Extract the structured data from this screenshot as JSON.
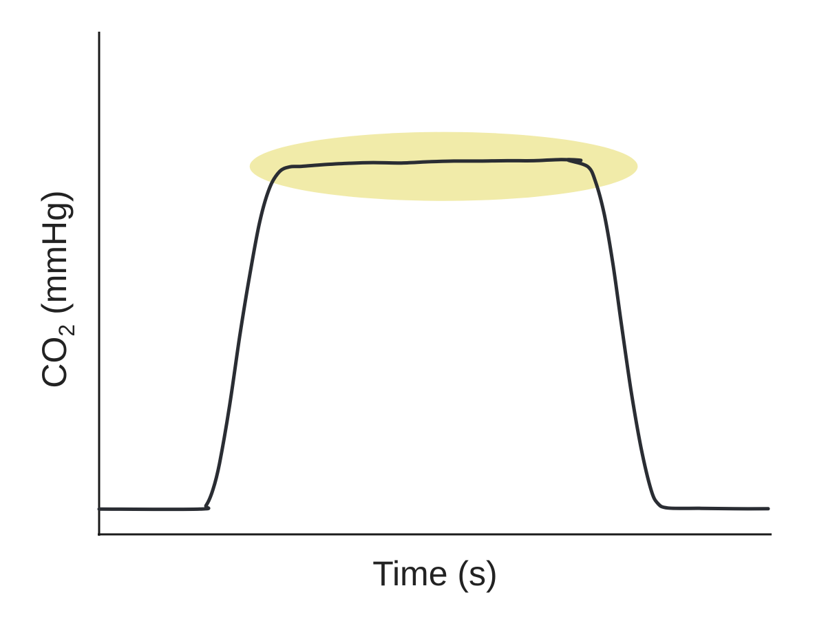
{
  "chart_data": {
    "type": "line",
    "title": "",
    "xlabel": "Time (s)",
    "ylabel": {
      "prefix": "CO",
      "subscript": "2",
      "suffix": " (mmHg)"
    },
    "grid": false,
    "legend": "none",
    "xlim": [
      0,
      100
    ],
    "ylim": [
      0,
      100
    ],
    "series": [
      {
        "color": "#2a2d33",
        "points": [
          [
            0,
            3
          ],
          [
            15,
            3
          ],
          [
            16,
            4
          ],
          [
            17,
            8
          ],
          [
            18,
            15
          ],
          [
            19.5,
            30
          ],
          [
            21,
            48
          ],
          [
            22.5,
            64
          ],
          [
            24,
            78
          ],
          [
            25.5,
            87
          ],
          [
            27,
            91.2
          ],
          [
            28.5,
            92.4
          ],
          [
            30,
            92.5
          ],
          [
            33,
            92.9
          ],
          [
            37,
            93.3
          ],
          [
            41,
            93.5
          ],
          [
            45,
            93.4
          ],
          [
            49,
            93.7
          ],
          [
            53,
            93.9
          ],
          [
            57,
            93.9
          ],
          [
            61,
            94.0
          ],
          [
            65,
            94.0
          ],
          [
            69,
            94.3
          ],
          [
            72,
            94.1
          ],
          [
            70,
            94.2
          ],
          [
            73,
            92.5
          ],
          [
            74.2,
            88.5
          ],
          [
            75.5,
            80
          ],
          [
            76.8,
            67
          ],
          [
            78,
            52
          ],
          [
            79.5,
            34
          ],
          [
            81,
            19
          ],
          [
            82.5,
            8
          ],
          [
            83.5,
            4.5
          ],
          [
            85,
            3.3
          ],
          [
            90,
            3.2
          ],
          [
            95,
            3.1
          ],
          [
            100,
            3.1
          ]
        ]
      }
    ],
    "highlight": {
      "shape": "ellipse",
      "color": "#efe89a",
      "x_range": [
        22.5,
        80.5
      ],
      "y_range": [
        83.5,
        101.5
      ]
    }
  }
}
